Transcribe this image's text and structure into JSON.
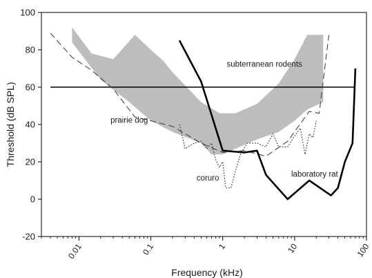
{
  "chart_data": {
    "type": "line",
    "title": "",
    "xlabel": "Frequency (kHz)",
    "ylabel": "Threshold (dB SPL)",
    "x_scale": "log",
    "xlim": [
      0.003,
      100
    ],
    "ylim": [
      -20,
      100
    ],
    "x_ticks": [
      0.01,
      0.1,
      1,
      10,
      100
    ],
    "x_tick_labels": [
      "0.01",
      "0.1",
      "1",
      "10",
      "100"
    ],
    "y_ticks": [
      -20,
      0,
      20,
      40,
      60,
      80,
      100
    ],
    "y_tick_labels": [
      "-20",
      "0",
      "20",
      "40",
      "60",
      "80",
      "100"
    ],
    "grid": false,
    "colors": {
      "band": "#bdbdbd",
      "line": "#000000"
    },
    "reference_line": {
      "y": 60,
      "x_range": [
        0.004,
        70
      ]
    },
    "band": {
      "name": "subterranean rodents",
      "upper": [
        [
          0.008,
          92
        ],
        [
          0.015,
          78
        ],
        [
          0.03,
          75
        ],
        [
          0.06,
          88
        ],
        [
          0.1,
          80
        ],
        [
          0.15,
          74
        ],
        [
          0.2,
          68
        ],
        [
          0.5,
          52
        ],
        [
          0.9,
          46
        ],
        [
          1.5,
          46
        ],
        [
          3,
          51
        ],
        [
          6,
          62
        ],
        [
          10,
          75
        ],
        [
          15,
          88
        ],
        [
          25,
          88
        ]
      ],
      "lower": [
        [
          25,
          52
        ],
        [
          15,
          48
        ],
        [
          10,
          42
        ],
        [
          6,
          36
        ],
        [
          3,
          32
        ],
        [
          1.5,
          27
        ],
        [
          1,
          24
        ],
        [
          0.7,
          24
        ],
        [
          0.5,
          30
        ],
        [
          0.2,
          36
        ],
        [
          0.1,
          42
        ],
        [
          0.05,
          52
        ],
        [
          0.02,
          64
        ],
        [
          0.008,
          84
        ]
      ]
    },
    "series": [
      {
        "name": "prairie dog",
        "style": "dashed",
        "x": [
          0.004,
          0.008,
          0.015,
          0.03,
          0.06,
          0.1,
          0.2,
          0.5,
          1,
          2,
          4,
          8,
          16,
          22,
          30
        ],
        "y": [
          89,
          76,
          69,
          59,
          44,
          42,
          39,
          30,
          25,
          26,
          23,
          31,
          47,
          46,
          88
        ]
      },
      {
        "name": "coruro",
        "style": "dotted",
        "x": [
          0.25,
          0.3,
          0.4,
          0.5,
          0.6,
          0.7,
          0.8,
          0.9,
          1.0,
          1.1,
          1.3,
          1.5,
          1.8,
          2.2,
          3,
          4,
          5,
          6,
          8,
          10,
          12,
          14,
          16,
          18,
          20
        ],
        "y": [
          40,
          27,
          30,
          31,
          27,
          30,
          21,
          17,
          20,
          6,
          6,
          15,
          25,
          30,
          30,
          28,
          35,
          28,
          28,
          34,
          38,
          24,
          35,
          33,
          42
        ]
      },
      {
        "name": "laboratory rat",
        "style": "solid",
        "x": [
          0.25,
          0.5,
          1,
          2,
          3,
          4,
          8,
          16,
          32,
          40,
          50,
          64,
          70
        ],
        "y": [
          85,
          63,
          26,
          25,
          26,
          13,
          0,
          10,
          2,
          6,
          20,
          30,
          70
        ]
      }
    ],
    "labels": [
      {
        "text": "subterranean rodents",
        "x": 3.8,
        "y": 71
      },
      {
        "text": "prairie dog",
        "x": 0.05,
        "y": 41
      },
      {
        "text": "coruro",
        "x": 0.62,
        "y": 10
      },
      {
        "text": "laboratory rat",
        "x": 19,
        "y": 12
      }
    ]
  }
}
